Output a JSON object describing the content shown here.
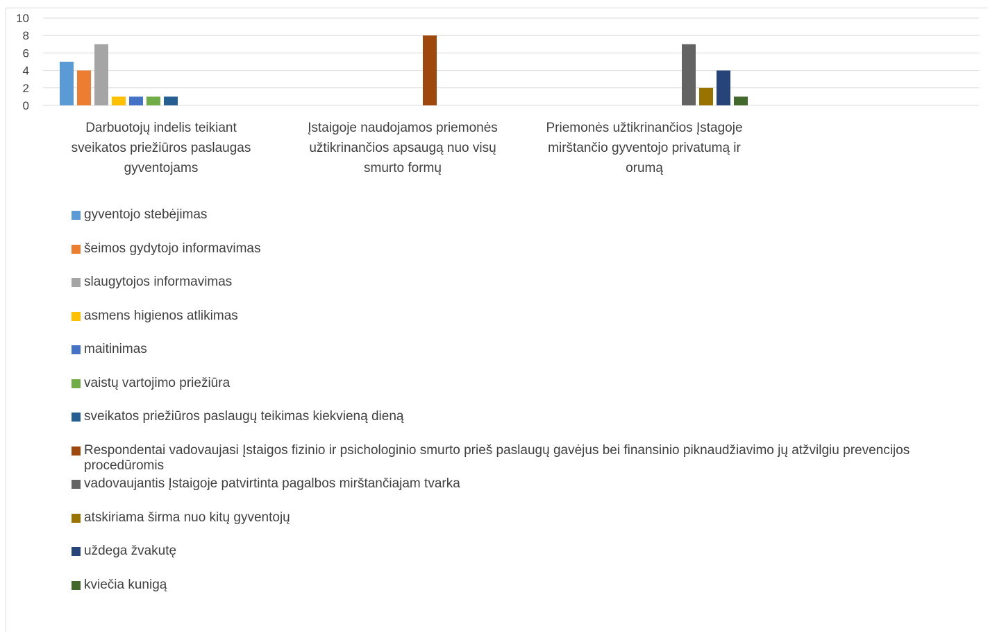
{
  "chart_data": {
    "type": "bar",
    "ylim": [
      0,
      10
    ],
    "yticks": [
      "0",
      "2",
      "4",
      "6",
      "8",
      "10"
    ],
    "categories": [
      "Darbuotojų indelis teikiant sveikatos priežiūros paslaugas gyventojams",
      "Įstaigoje naudojamos priemonės užtikrinančios apsaugą nuo visų smurto formų",
      "Priemonės užtikrinančios Įstagoje mirštančio gyventojo privatumą ir orumą"
    ],
    "category_lines": [
      [
        "Darbuotojų indelis teikiant",
        "sveikatos priežiūros paslaugas",
        "gyventojams"
      ],
      [
        "Įstaigoje naudojamos priemonės",
        "užtikrinančios apsaugą nuo visų",
        "smurto formų"
      ],
      [
        "Priemonės užtikrinančios Įstagoje",
        "mirštančio gyventojo privatumą ir",
        "orumą"
      ]
    ],
    "series": [
      {
        "name": "gyventojo stebėjimas",
        "color": "#5b9bd5",
        "values": [
          5,
          null,
          null
        ]
      },
      {
        "name": "šeimos gydytojo informavimas",
        "color": "#ed7d31",
        "values": [
          4,
          null,
          null
        ]
      },
      {
        "name": "slaugytojos informavimas",
        "color": "#a5a5a5",
        "values": [
          7,
          null,
          null
        ]
      },
      {
        "name": "asmens higienos atlikimas",
        "color": "#ffc000",
        "values": [
          1,
          null,
          null
        ]
      },
      {
        "name": "maitinimas",
        "color": "#4472c4",
        "values": [
          1,
          null,
          null
        ]
      },
      {
        "name": "vaistų vartojimo priežiūra",
        "color": "#70ad47",
        "values": [
          1,
          null,
          null
        ]
      },
      {
        "name": "sveikatos priežiūros paslaugų teikimas kiekvieną dieną",
        "color": "#255e91",
        "values": [
          1,
          null,
          null
        ]
      },
      {
        "name": "Respondentai vadovaujasi Įstaigos fizinio ir psichologinio smurto prieš paslaugų gavėjus bei finansinio piknaudžiavimo jų atžvilgiu prevencijos procedūromis",
        "color": "#9e480e",
        "values": [
          null,
          8,
          null
        ]
      },
      {
        "name": "vadovaujantis Įstaigoje patvirtinta pagalbos mirštančiajam tvarka",
        "color": "#636363",
        "values": [
          null,
          null,
          7
        ]
      },
      {
        "name": "atskiriama širma nuo kitų gyventojų",
        "color": "#997300",
        "values": [
          null,
          null,
          2
        ]
      },
      {
        "name": "uždega žvakutę",
        "color": "#264478",
        "values": [
          null,
          null,
          4
        ]
      },
      {
        "name": "kviečia kunigą",
        "color": "#43682b",
        "values": [
          null,
          null,
          1
        ]
      }
    ],
    "grid": true,
    "legend_position": "bottom"
  }
}
